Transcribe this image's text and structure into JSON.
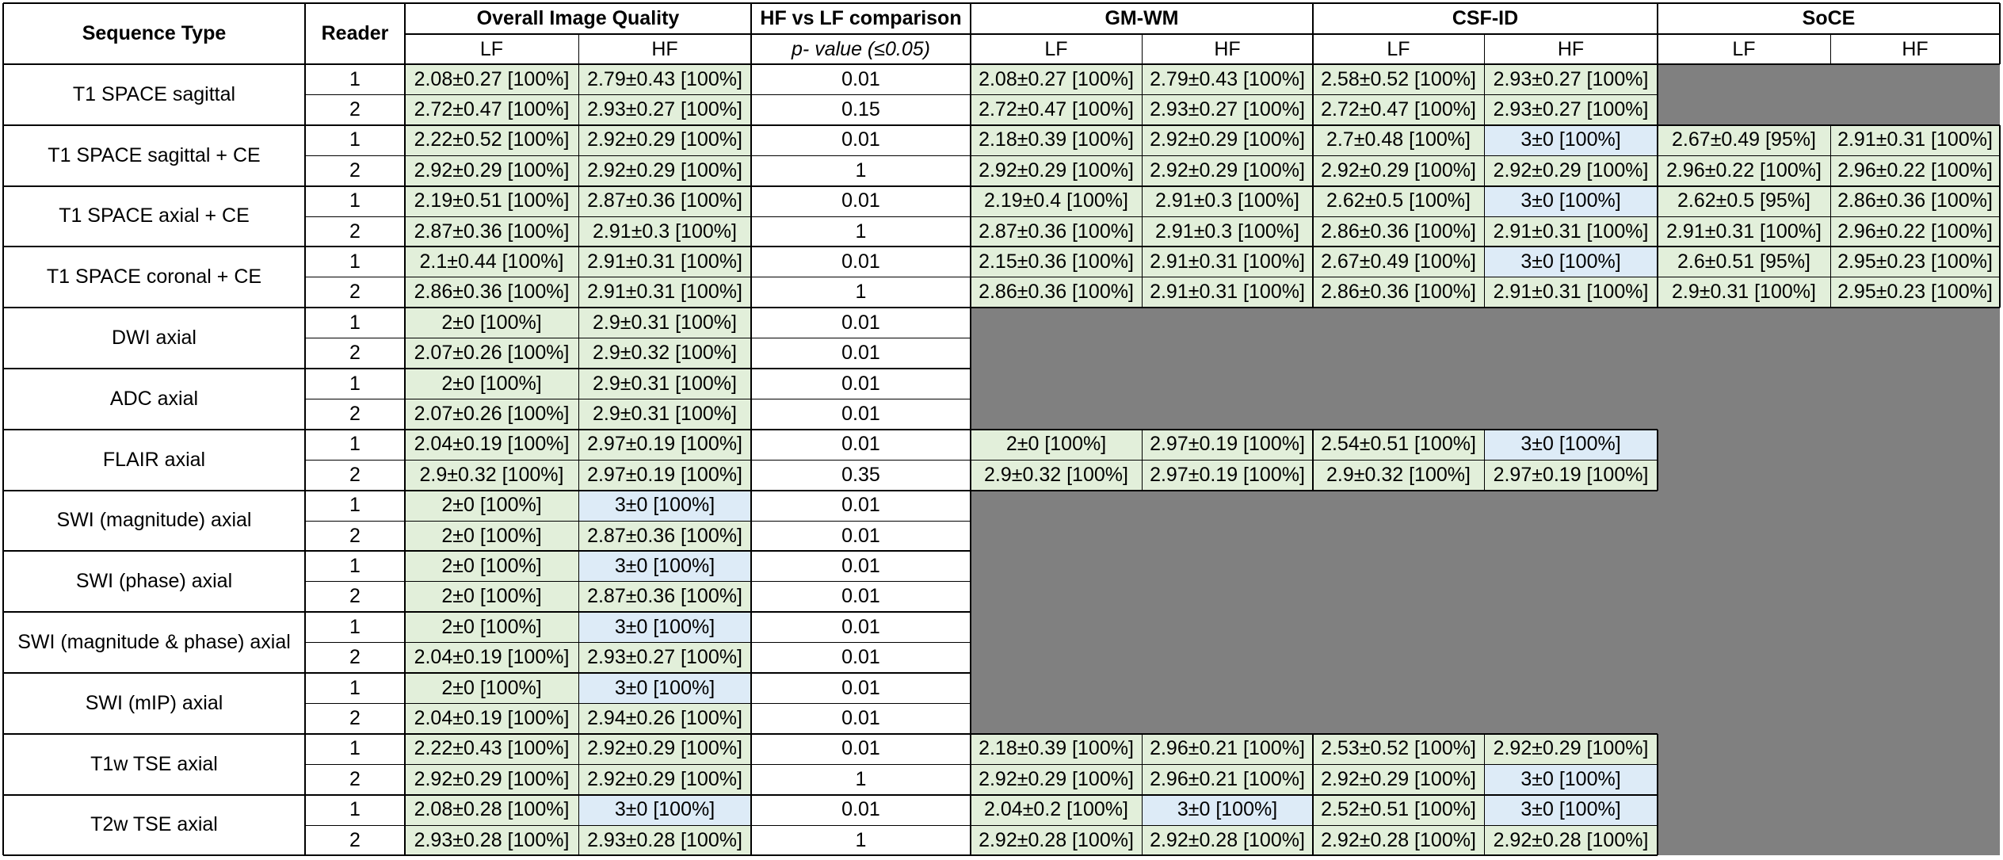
{
  "header": {
    "sequence_type": "Sequence Type",
    "reader": "Reader",
    "overall_image_quality": "Overall Image Quality",
    "hf_vs_lf": "HF vs LF comparison",
    "p_value_prefix": "p-",
    "p_value_suffix": " value (≤0.05)",
    "gm_wm": "GM-WM",
    "csf_id": "CSF-ID",
    "soce": "SoCE",
    "lf": "LF",
    "hf": "HF"
  },
  "palette": {
    "green": "#E2EFDA",
    "blue": "#DDEBF7",
    "gray": "#808080"
  },
  "rows": [
    {
      "seq": "T1 SPACE sagittal",
      "readers": [
        {
          "reader": "1",
          "oiq_lf": "2.08±0.27 [100%]",
          "oiq_hf": "2.79±0.43 [100%]",
          "p": "0.01",
          "gm_lf": "2.08±0.27 [100%]",
          "gm_hf": "2.79±0.43 [100%]",
          "csf_lf": "2.58±0.52 [100%]",
          "csf_hf": "2.93±0.27 [100%]",
          "soce_lf": null,
          "soce_hf": null
        },
        {
          "reader": "2",
          "oiq_lf": "2.72±0.47 [100%]",
          "oiq_hf": "2.93±0.27 [100%]",
          "p": "0.15",
          "gm_lf": "2.72±0.47 [100%]",
          "gm_hf": "2.93±0.27 [100%]",
          "csf_lf": "2.72±0.47 [100%]",
          "csf_hf": "2.93±0.27 [100%]",
          "soce_lf": null,
          "soce_hf": null
        }
      ]
    },
    {
      "seq": "T1 SPACE sagittal + CE",
      "readers": [
        {
          "reader": "1",
          "oiq_lf": "2.22±0.52 [100%]",
          "oiq_hf": "2.92±0.29 [100%]",
          "p": "0.01",
          "gm_lf": "2.18±0.39 [100%]",
          "gm_hf": "2.92±0.29 [100%]",
          "csf_lf": "2.7±0.48 [100%]",
          "csf_hf": "3±0 [100%]",
          "soce_lf": "2.67±0.49 [95%]",
          "soce_hf": "2.91±0.31 [100%]"
        },
        {
          "reader": "2",
          "oiq_lf": "2.92±0.29 [100%]",
          "oiq_hf": "2.92±0.29 [100%]",
          "p": "1",
          "gm_lf": "2.92±0.29 [100%]",
          "gm_hf": "2.92±0.29 [100%]",
          "csf_lf": "2.92±0.29 [100%]",
          "csf_hf": "2.92±0.29 [100%]",
          "soce_lf": "2.96±0.22 [100%]",
          "soce_hf": "2.96±0.22 [100%]"
        }
      ]
    },
    {
      "seq": "T1 SPACE axial + CE",
      "readers": [
        {
          "reader": "1",
          "oiq_lf": "2.19±0.51 [100%]",
          "oiq_hf": "2.87±0.36 [100%]",
          "p": "0.01",
          "gm_lf": "2.19±0.4 [100%]",
          "gm_hf": "2.91±0.3 [100%]",
          "csf_lf": "2.62±0.5 [100%]",
          "csf_hf": "3±0 [100%]",
          "soce_lf": "2.62±0.5 [95%]",
          "soce_hf": "2.86±0.36 [100%]"
        },
        {
          "reader": "2",
          "oiq_lf": "2.87±0.36 [100%]",
          "oiq_hf": "2.91±0.3 [100%]",
          "p": "1",
          "gm_lf": "2.87±0.36 [100%]",
          "gm_hf": "2.91±0.3 [100%]",
          "csf_lf": "2.86±0.36 [100%]",
          "csf_hf": "2.91±0.31 [100%]",
          "soce_lf": "2.91±0.31 [100%]",
          "soce_hf": "2.96±0.22 [100%]"
        }
      ]
    },
    {
      "seq": "T1 SPACE coronal + CE",
      "readers": [
        {
          "reader": "1",
          "oiq_lf": "2.1±0.44 [100%]",
          "oiq_hf": "2.91±0.31 [100%]",
          "p": "0.01",
          "gm_lf": "2.15±0.36 [100%]",
          "gm_hf": "2.91±0.31 [100%]",
          "csf_lf": "2.67±0.49 [100%]",
          "csf_hf": "3±0 [100%]",
          "soce_lf": "2.6±0.51 [95%]",
          "soce_hf": "2.95±0.23 [100%]"
        },
        {
          "reader": "2",
          "oiq_lf": "2.86±0.36 [100%]",
          "oiq_hf": "2.91±0.31 [100%]",
          "p": "1",
          "gm_lf": "2.86±0.36 [100%]",
          "gm_hf": "2.91±0.31 [100%]",
          "csf_lf": "2.86±0.36 [100%]",
          "csf_hf": "2.91±0.31 [100%]",
          "soce_lf": "2.9±0.31 [100%]",
          "soce_hf": "2.95±0.23 [100%]"
        }
      ]
    },
    {
      "seq": "DWI axial",
      "readers": [
        {
          "reader": "1",
          "oiq_lf": "2±0 [100%]",
          "oiq_hf": "2.9±0.31 [100%]",
          "p": "0.01",
          "gm_lf": null,
          "gm_hf": null,
          "csf_lf": null,
          "csf_hf": null,
          "soce_lf": null,
          "soce_hf": null
        },
        {
          "reader": "2",
          "oiq_lf": "2.07±0.26 [100%]",
          "oiq_hf": "2.9±0.32 [100%]",
          "p": "0.01",
          "gm_lf": null,
          "gm_hf": null,
          "csf_lf": null,
          "csf_hf": null,
          "soce_lf": null,
          "soce_hf": null
        }
      ]
    },
    {
      "seq": "ADC axial",
      "readers": [
        {
          "reader": "1",
          "oiq_lf": "2±0 [100%]",
          "oiq_hf": "2.9±0.31 [100%]",
          "p": "0.01",
          "gm_lf": null,
          "gm_hf": null,
          "csf_lf": null,
          "csf_hf": null,
          "soce_lf": null,
          "soce_hf": null
        },
        {
          "reader": "2",
          "oiq_lf": "2.07±0.26 [100%]",
          "oiq_hf": "2.9±0.31 [100%]",
          "p": "0.01",
          "gm_lf": null,
          "gm_hf": null,
          "csf_lf": null,
          "csf_hf": null,
          "soce_lf": null,
          "soce_hf": null
        }
      ]
    },
    {
      "seq": "FLAIR axial",
      "readers": [
        {
          "reader": "1",
          "oiq_lf": "2.04±0.19 [100%]",
          "oiq_hf": "2.97±0.19 [100%]",
          "p": "0.01",
          "gm_lf": "2±0 [100%]",
          "gm_hf": "2.97±0.19 [100%]",
          "csf_lf": "2.54±0.51 [100%]",
          "csf_hf": "3±0 [100%]",
          "soce_lf": null,
          "soce_hf": null
        },
        {
          "reader": "2",
          "oiq_lf": "2.9±0.32 [100%]",
          "oiq_hf": "2.97±0.19 [100%]",
          "p": "0.35",
          "gm_lf": "2.9±0.32 [100%]",
          "gm_hf": "2.97±0.19 [100%]",
          "csf_lf": "2.9±0.32 [100%]",
          "csf_hf": "2.97±0.19 [100%]",
          "soce_lf": null,
          "soce_hf": null
        }
      ]
    },
    {
      "seq": "SWI (magnitude) axial",
      "readers": [
        {
          "reader": "1",
          "oiq_lf": "2±0 [100%]",
          "oiq_hf": "3±0 [100%]",
          "p": "0.01",
          "gm_lf": null,
          "gm_hf": null,
          "csf_lf": null,
          "csf_hf": null,
          "soce_lf": null,
          "soce_hf": null
        },
        {
          "reader": "2",
          "oiq_lf": "2±0 [100%]",
          "oiq_hf": "2.87±0.36 [100%]",
          "p": "0.01",
          "gm_lf": null,
          "gm_hf": null,
          "csf_lf": null,
          "csf_hf": null,
          "soce_lf": null,
          "soce_hf": null
        }
      ]
    },
    {
      "seq": "SWI (phase) axial",
      "readers": [
        {
          "reader": "1",
          "oiq_lf": "2±0 [100%]",
          "oiq_hf": "3±0 [100%]",
          "p": "0.01",
          "gm_lf": null,
          "gm_hf": null,
          "csf_lf": null,
          "csf_hf": null,
          "soce_lf": null,
          "soce_hf": null
        },
        {
          "reader": "2",
          "oiq_lf": "2±0 [100%]",
          "oiq_hf": "2.87±0.36 [100%]",
          "p": "0.01",
          "gm_lf": null,
          "gm_hf": null,
          "csf_lf": null,
          "csf_hf": null,
          "soce_lf": null,
          "soce_hf": null
        }
      ]
    },
    {
      "seq": "SWI (magnitude & phase) axial",
      "readers": [
        {
          "reader": "1",
          "oiq_lf": "2±0 [100%]",
          "oiq_hf": "3±0 [100%]",
          "p": "0.01",
          "gm_lf": null,
          "gm_hf": null,
          "csf_lf": null,
          "csf_hf": null,
          "soce_lf": null,
          "soce_hf": null
        },
        {
          "reader": "2",
          "oiq_lf": "2.04±0.19 [100%]",
          "oiq_hf": "2.93±0.27 [100%]",
          "p": "0.01",
          "gm_lf": null,
          "gm_hf": null,
          "csf_lf": null,
          "csf_hf": null,
          "soce_lf": null,
          "soce_hf": null
        }
      ]
    },
    {
      "seq": "SWI (mIP) axial",
      "readers": [
        {
          "reader": "1",
          "oiq_lf": "2±0 [100%]",
          "oiq_hf": "3±0 [100%]",
          "p": "0.01",
          "gm_lf": null,
          "gm_hf": null,
          "csf_lf": null,
          "csf_hf": null,
          "soce_lf": null,
          "soce_hf": null
        },
        {
          "reader": "2",
          "oiq_lf": "2.04±0.19 [100%]",
          "oiq_hf": "2.94±0.26 [100%]",
          "p": "0.01",
          "gm_lf": null,
          "gm_hf": null,
          "csf_lf": null,
          "csf_hf": null,
          "soce_lf": null,
          "soce_hf": null
        }
      ]
    },
    {
      "seq": "T1w TSE axial",
      "readers": [
        {
          "reader": "1",
          "oiq_lf": "2.22±0.43 [100%]",
          "oiq_hf": "2.92±0.29 [100%]",
          "p": "0.01",
          "gm_lf": "2.18±0.39 [100%]",
          "gm_hf": "2.96±0.21 [100%]",
          "csf_lf": "2.53±0.52 [100%]",
          "csf_hf": "2.92±0.29 [100%]",
          "soce_lf": null,
          "soce_hf": null
        },
        {
          "reader": "2",
          "oiq_lf": "2.92±0.29 [100%]",
          "oiq_hf": "2.92±0.29 [100%]",
          "p": "1",
          "gm_lf": "2.92±0.29 [100%]",
          "gm_hf": "2.96±0.21 [100%]",
          "csf_lf": "2.92±0.29 [100%]",
          "csf_hf": "3±0 [100%]",
          "soce_lf": null,
          "soce_hf": null
        }
      ]
    },
    {
      "seq": "T2w TSE axial",
      "readers": [
        {
          "reader": "1",
          "oiq_lf": "2.08±0.28 [100%]",
          "oiq_hf": "3±0 [100%]",
          "p": "0.01",
          "gm_lf": "2.04±0.2 [100%]",
          "gm_hf": "3±0 [100%]",
          "csf_lf": "2.52±0.51 [100%]",
          "csf_hf": "3±0 [100%]",
          "soce_lf": null,
          "soce_hf": null
        },
        {
          "reader": "2",
          "oiq_lf": "2.93±0.28 [100%]",
          "oiq_hf": "2.93±0.28 [100%]",
          "p": "1",
          "gm_lf": "2.92±0.28 [100%]",
          "gm_hf": "2.92±0.28 [100%]",
          "csf_lf": "2.92±0.28 [100%]",
          "csf_hf": "2.92±0.28 [100%]",
          "soce_lf": null,
          "soce_hf": null
        }
      ]
    }
  ]
}
